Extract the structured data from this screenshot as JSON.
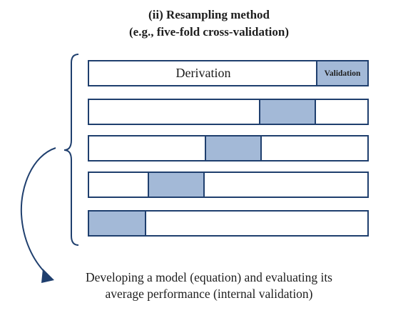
{
  "title": {
    "line1": "(ii) Resampling method",
    "line2": "(e.g., five-fold cross-validation)"
  },
  "folds": {
    "derivation_label": "Derivation",
    "validation_label": "Validation",
    "count": 5,
    "validation_color": "#a3b9d7",
    "border_color": "#1f3f6e"
  },
  "footer": {
    "line1": "Developing a model (equation) and evaluating its",
    "line2": "average performance (internal validation)"
  }
}
